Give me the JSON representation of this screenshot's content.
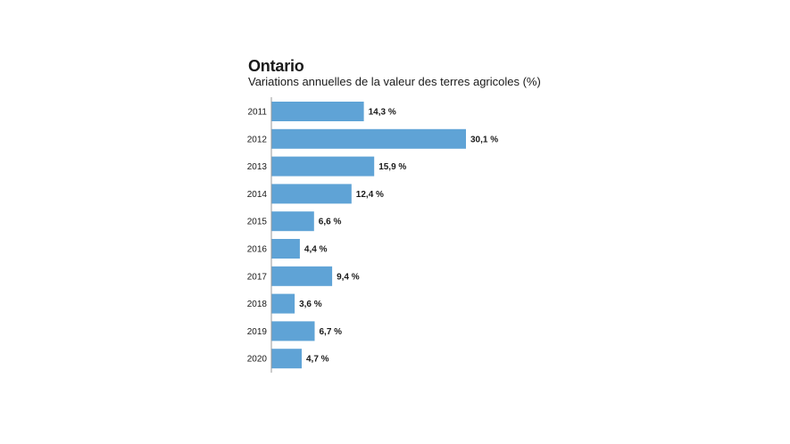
{
  "chart_data": {
    "type": "bar",
    "orientation": "horizontal",
    "title": "Ontario",
    "subtitle": "Variations annuelles de la valeur des terres agricoles (%)",
    "categories": [
      "2011",
      "2012",
      "2013",
      "2014",
      "2015",
      "2016",
      "2017",
      "2018",
      "2019",
      "2020"
    ],
    "values": [
      14.3,
      30.1,
      15.9,
      12.4,
      6.6,
      4.4,
      9.4,
      3.6,
      6.7,
      4.7
    ],
    "data_labels": [
      "14,3 %",
      "30,1 %",
      "15,9 %",
      "12,4 %",
      "6,6 %",
      "4,4 %",
      "9,4 %",
      "3,6 %",
      "6,7 %",
      "4,7 %"
    ],
    "xlabel": "",
    "ylabel": "",
    "xlim": [
      0,
      30.1
    ],
    "grid": false,
    "legend": "none",
    "colors": {
      "bar": "#5fa3d6",
      "axis": "#9a9a9a",
      "text": "#1a1a1a"
    }
  }
}
